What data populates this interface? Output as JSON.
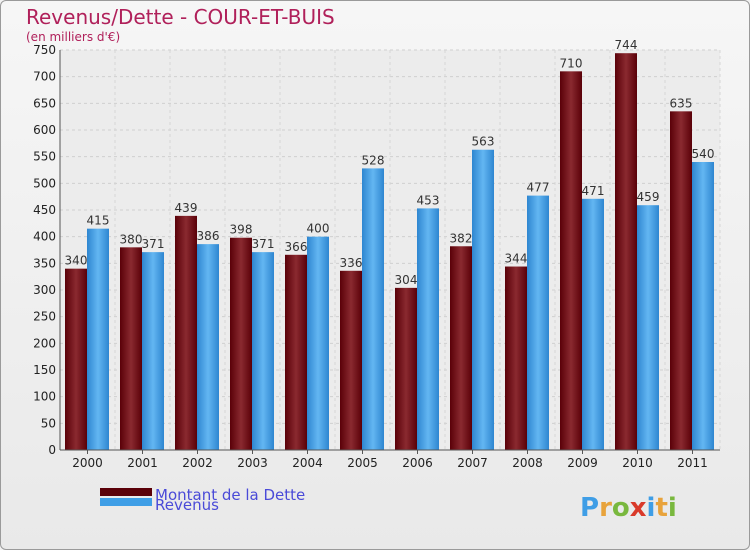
{
  "chart_data": {
    "type": "bar",
    "title": "Revenus/Dette - COUR-ET-BUIS",
    "subtitle": "(en milliers d'€)",
    "categories": [
      "2000",
      "2001",
      "2002",
      "2003",
      "2004",
      "2005",
      "2006",
      "2007",
      "2008",
      "2009",
      "2010",
      "2011"
    ],
    "series": [
      {
        "name": "Montant de la Dette",
        "color": "#6b0a10",
        "values": [
          340,
          380,
          439,
          398,
          366,
          336,
          304,
          382,
          344,
          710,
          744,
          635
        ]
      },
      {
        "name": "Revenus",
        "color": "#3f9ee6",
        "values": [
          415,
          371,
          386,
          371,
          400,
          528,
          453,
          563,
          477,
          471,
          459,
          540
        ]
      }
    ],
    "ylim": [
      0,
      750
    ],
    "yticks": [
      "0",
      "50",
      "100",
      "150",
      "200",
      "250",
      "300",
      "350",
      "400",
      "450",
      "500",
      "550",
      "600",
      "650",
      "700",
      "750"
    ],
    "grid": true,
    "legend_position": "bottom-left",
    "xlabel": "",
    "ylabel": ""
  },
  "brand": {
    "letters": [
      "P",
      "r",
      "o",
      "x",
      "i",
      "t",
      "i"
    ],
    "colors": [
      "#3f9ee6",
      "#e8a33b",
      "#79b83e",
      "#d93a2a",
      "#3f9ee6",
      "#e8a33b",
      "#79b83e"
    ]
  }
}
